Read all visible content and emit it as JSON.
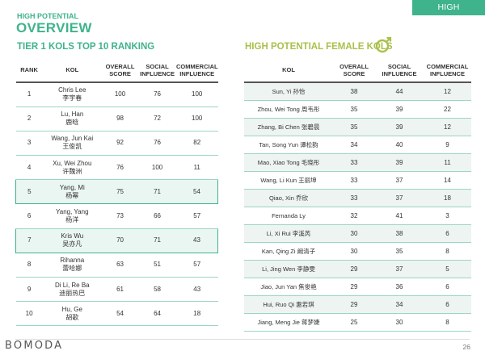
{
  "header": {
    "tab_label": "HIGH POTENTIAL",
    "eyebrow": "HIGH POTENTIAL",
    "title": "OVERVIEW"
  },
  "left_table": {
    "title": "TIER 1 KOLS TOP 10 RANKING",
    "headers": [
      "RANK",
      "KOL",
      "OVERALL SCORE",
      "SOCIAL INFLUENCE",
      "COMMERCIAL INFLUENCE"
    ],
    "rows": [
      {
        "rank": "1",
        "name_en": "Chris Lee",
        "name_cn": "李宇春",
        "overall": "100",
        "social": "76",
        "commercial": "100",
        "highlighted": false
      },
      {
        "rank": "2",
        "name_en": "Lu, Han",
        "name_cn": "鹿晗",
        "overall": "98",
        "social": "72",
        "commercial": "100",
        "highlighted": false
      },
      {
        "rank": "3",
        "name_en": "Wang, Jun Kai",
        "name_cn": "王俊凯",
        "overall": "92",
        "social": "76",
        "commercial": "82",
        "highlighted": false
      },
      {
        "rank": "4",
        "name_en": "Xu, Wei Zhou",
        "name_cn": "许魏洲",
        "overall": "76",
        "social": "100",
        "commercial": "11",
        "highlighted": false
      },
      {
        "rank": "5",
        "name_en": "Yang, Mi",
        "name_cn": "杨幂",
        "overall": "75",
        "social": "71",
        "commercial": "54",
        "highlighted": true
      },
      {
        "rank": "6",
        "name_en": "Yang, Yang",
        "name_cn": "杨洋",
        "overall": "73",
        "social": "66",
        "commercial": "57",
        "highlighted": false
      },
      {
        "rank": "7",
        "name_en": "Kris Wu",
        "name_cn": "吴亦凡",
        "overall": "70",
        "social": "71",
        "commercial": "43",
        "highlighted": true
      },
      {
        "rank": "8",
        "name_en": "Rihanna",
        "name_cn": "蕾哈娜",
        "overall": "63",
        "social": "51",
        "commercial": "57",
        "highlighted": false
      },
      {
        "rank": "9",
        "name_en": "Di Li, Re Ba",
        "name_cn": "迪丽热巴",
        "overall": "61",
        "social": "58",
        "commercial": "43",
        "highlighted": false
      },
      {
        "rank": "10",
        "name_en": "Hu, Ge",
        "name_cn": "胡歌",
        "overall": "54",
        "social": "64",
        "commercial": "18",
        "highlighted": false
      }
    ]
  },
  "right_table": {
    "title": "HIGH POTENTIAL FEMALE KOLS",
    "headers": [
      "KOL",
      "OVERALL SCORE",
      "SOCIAL INFLUENCE",
      "COMMERCIAL INFLUENCE"
    ],
    "rows": [
      {
        "name": "Sun, Yi 孙怡",
        "overall": "38",
        "social": "44",
        "commercial": "12"
      },
      {
        "name": "Zhou, Wei Tong 周韦彤",
        "overall": "35",
        "social": "39",
        "commercial": "22"
      },
      {
        "name": "Zhang, Bi Chen 张碧晨",
        "overall": "35",
        "social": "39",
        "commercial": "12"
      },
      {
        "name": "Tan, Song Yun 谭松韵",
        "overall": "34",
        "social": "40",
        "commercial": "9"
      },
      {
        "name": "Mao, Xiao Tong 毛晓彤",
        "overall": "33",
        "social": "39",
        "commercial": "11"
      },
      {
        "name": "Wang, Li Kun 王丽坤",
        "overall": "33",
        "social": "37",
        "commercial": "14"
      },
      {
        "name": "Qiao, Xin 乔欣",
        "overall": "33",
        "social": "37",
        "commercial": "18"
      },
      {
        "name": "Fernanda Ly",
        "overall": "32",
        "social": "41",
        "commercial": "3"
      },
      {
        "name": "Li, Xi Rui 李溪芮",
        "overall": "30",
        "social": "38",
        "commercial": "6"
      },
      {
        "name": "Kan, Qing Zi 阚清子",
        "overall": "30",
        "social": "35",
        "commercial": "8"
      },
      {
        "name": "Li, Jing Wen 李静雯",
        "overall": "29",
        "social": "37",
        "commercial": "5"
      },
      {
        "name": "Jiao, Jun Yan 焦俊艳",
        "overall": "29",
        "social": "36",
        "commercial": "6"
      },
      {
        "name": "Hui, Ruo Qi 惠若琪",
        "overall": "29",
        "social": "34",
        "commercial": "6"
      },
      {
        "name": "Jiang, Meng Jie 蒋梦婕",
        "overall": "25",
        "social": "30",
        "commercial": "8"
      }
    ]
  },
  "footer": {
    "logo": "BOMODA",
    "page_number": "26"
  },
  "colors": {
    "accent_green": "#3fb38c",
    "accent_lime": "#a9c04c",
    "highlight_fill": "#eaf6f1",
    "stripe_fill": "#eef4f2"
  },
  "icons": {
    "female_symbol": "female-symbol-icon"
  }
}
